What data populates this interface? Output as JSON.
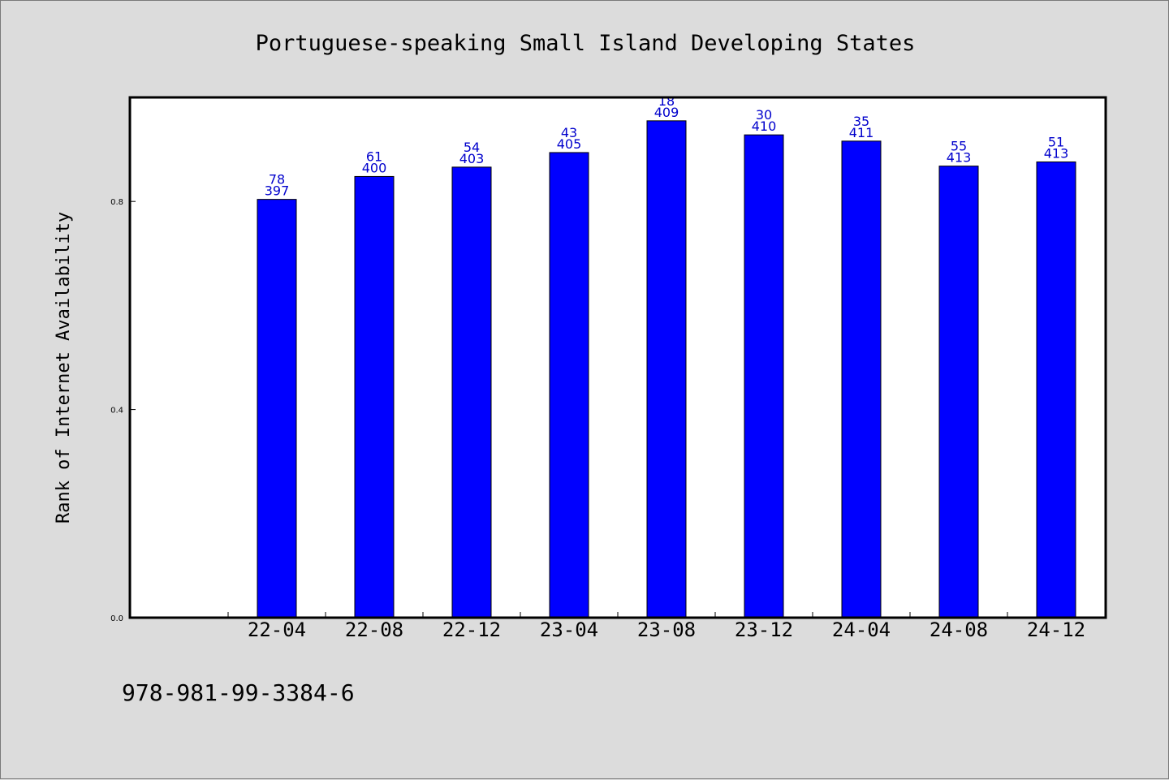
{
  "chart_data": {
    "type": "bar",
    "title": "Portuguese-speaking Small Island Developing States",
    "xlabel": "",
    "ylabel": "Rank of Internet Availability",
    "categories": [
      "22-04",
      "22-08",
      "22-12",
      "23-04",
      "23-08",
      "23-12",
      "24-04",
      "24-08",
      "24-12"
    ],
    "values": [
      0.804,
      0.848,
      0.866,
      0.894,
      0.955,
      0.928,
      0.916,
      0.868,
      0.876
    ],
    "label_top": [
      "78",
      "61",
      "54",
      "43",
      "18",
      "30",
      "35",
      "55",
      "51"
    ],
    "label_bottom": [
      "397",
      "400",
      "403",
      "405",
      "409",
      "410",
      "411",
      "413",
      "413"
    ],
    "yticks": [
      "0.0",
      "0.4",
      "0.8"
    ],
    "ylim": [
      0,
      1.0
    ],
    "grid": false,
    "bar_color": "#0000ff",
    "label_color": "#0000cc"
  },
  "footnote": "978-981-99-3384-6"
}
